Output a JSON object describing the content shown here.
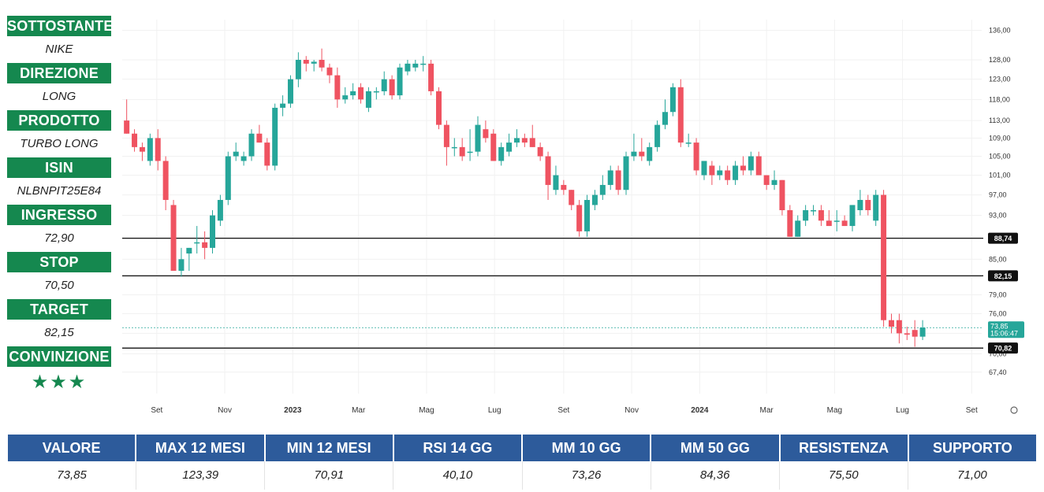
{
  "sidebar": [
    {
      "label": "SOTTOSTANTE",
      "value": "NIKE"
    },
    {
      "label": "DIREZIONE",
      "value": "LONG"
    },
    {
      "label": "PRODOTTO",
      "value": "TURBO LONG"
    },
    {
      "label": "ISIN",
      "value": "NLBNPIT25E84"
    },
    {
      "label": "INGRESSO",
      "value": "72,90"
    },
    {
      "label": "STOP",
      "value": "70,50"
    },
    {
      "label": "TARGET",
      "value": "82,15"
    },
    {
      "label": "CONVINZIONE",
      "value": "★★★"
    }
  ],
  "stats": [
    {
      "label": "VALORE",
      "value": "73,85"
    },
    {
      "label": "MAX 12 MESI",
      "value": "123,39"
    },
    {
      "label": "MIN 12 MESI",
      "value": "70,91"
    },
    {
      "label": "RSI 14 GG",
      "value": "40,10"
    },
    {
      "label": "MM 10 GG",
      "value": "73,26"
    },
    {
      "label": "MM 50 GG",
      "value": "84,36"
    },
    {
      "label": "RESISTENZA",
      "value": "75,50"
    },
    {
      "label": "SUPPORTO",
      "value": "71,00"
    }
  ],
  "colors": {
    "up": "#26a69a",
    "down": "#ef5361",
    "sidebar_header": "#15884f",
    "stats_header": "#2d5b9b",
    "current_price": "#26a69a"
  },
  "chart_data": {
    "type": "candlestick",
    "y_scale": "log",
    "ylim": [
      64.5,
      139
    ],
    "y_ticks": [
      67.4,
      70.0,
      73.0,
      76.0,
      79.0,
      82.0,
      85.0,
      89.0,
      93.0,
      97.0,
      101.0,
      105.0,
      109.0,
      113.0,
      118.0,
      123.0,
      128.0,
      136.0
    ],
    "y_tick_labels": [
      "67,40",
      "70,00",
      "73,00",
      "76,00",
      "79,00",
      "82,00",
      "85,00",
      "89,00",
      "93,00",
      "97,00",
      "101,00",
      "105,00",
      "109,00",
      "113,00",
      "118,00",
      "123,00",
      "128,00",
      "136,00"
    ],
    "x_ticks": [
      {
        "date": "2022-09-01",
        "label": "Set"
      },
      {
        "date": "2022-11-01",
        "label": "Nov"
      },
      {
        "date": "2023-01-01",
        "label": "2023"
      },
      {
        "date": "2023-03-01",
        "label": "Mar"
      },
      {
        "date": "2023-05-01",
        "label": "Mag"
      },
      {
        "date": "2023-07-01",
        "label": "Lug"
      },
      {
        "date": "2023-09-01",
        "label": "Set"
      },
      {
        "date": "2023-11-01",
        "label": "Nov"
      },
      {
        "date": "2024-01-01",
        "label": "2024"
      },
      {
        "date": "2024-03-01",
        "label": "Mar"
      },
      {
        "date": "2024-05-01",
        "label": "Mag"
      },
      {
        "date": "2024-07-01",
        "label": "Lug"
      },
      {
        "date": "2024-09-01",
        "label": "Set"
      }
    ],
    "x_range": [
      "2022-08-01",
      "2024-09-10"
    ],
    "horizontal_lines": [
      {
        "value": 88.74,
        "label": "88,74"
      },
      {
        "value": 82.15,
        "label": "82,15"
      },
      {
        "value": 70.82,
        "label": "70,82"
      }
    ],
    "current_price": {
      "value": 73.85,
      "label": "73,85",
      "countdown": "15:06:47"
    },
    "candles": [
      {
        "date": "2022-08-05",
        "o": 113,
        "h": 118,
        "l": 110,
        "c": 110
      },
      {
        "date": "2022-08-12",
        "o": 110,
        "h": 111,
        "l": 106,
        "c": 107
      },
      {
        "date": "2022-08-19",
        "o": 107,
        "h": 108,
        "l": 104,
        "c": 106
      },
      {
        "date": "2022-08-26",
        "o": 104,
        "h": 110,
        "l": 103,
        "c": 109
      },
      {
        "date": "2022-09-02",
        "o": 109,
        "h": 111,
        "l": 102,
        "c": 104
      },
      {
        "date": "2022-09-09",
        "o": 104,
        "h": 105,
        "l": 94,
        "c": 96
      },
      {
        "date": "2022-09-16",
        "o": 95,
        "h": 96,
        "l": 83,
        "c": 83
      },
      {
        "date": "2022-09-23",
        "o": 83,
        "h": 87,
        "l": 82,
        "c": 85
      },
      {
        "date": "2022-09-30",
        "o": 86,
        "h": 87,
        "l": 83,
        "c": 87
      },
      {
        "date": "2022-10-07",
        "o": 88,
        "h": 91,
        "l": 86,
        "c": 88
      },
      {
        "date": "2022-10-14",
        "o": 88,
        "h": 90,
        "l": 85,
        "c": 87
      },
      {
        "date": "2022-10-21",
        "o": 87,
        "h": 94,
        "l": 86,
        "c": 93
      },
      {
        "date": "2022-10-28",
        "o": 92,
        "h": 97,
        "l": 91,
        "c": 96
      },
      {
        "date": "2022-11-04",
        "o": 96,
        "h": 106,
        "l": 95,
        "c": 105
      },
      {
        "date": "2022-11-11",
        "o": 105,
        "h": 108,
        "l": 104,
        "c": 106
      },
      {
        "date": "2022-11-18",
        "o": 104,
        "h": 106,
        "l": 103,
        "c": 105
      },
      {
        "date": "2022-11-25",
        "o": 105,
        "h": 111,
        "l": 104,
        "c": 110
      },
      {
        "date": "2022-12-02",
        "o": 110,
        "h": 112,
        "l": 108,
        "c": 108
      },
      {
        "date": "2022-12-09",
        "o": 108,
        "h": 109,
        "l": 102,
        "c": 103
      },
      {
        "date": "2022-12-16",
        "o": 103,
        "h": 117,
        "l": 102,
        "c": 116
      },
      {
        "date": "2022-12-23",
        "o": 116,
        "h": 119,
        "l": 114,
        "c": 117
      },
      {
        "date": "2022-12-30",
        "o": 117,
        "h": 124,
        "l": 116,
        "c": 123
      },
      {
        "date": "2023-01-06",
        "o": 123,
        "h": 130,
        "l": 121,
        "c": 128
      },
      {
        "date": "2023-01-13",
        "o": 128,
        "h": 129,
        "l": 125,
        "c": 127
      },
      {
        "date": "2023-01-20",
        "o": 127,
        "h": 128,
        "l": 125,
        "c": 127.5
      },
      {
        "date": "2023-01-27",
        "o": 128,
        "h": 131,
        "l": 125,
        "c": 126
      },
      {
        "date": "2023-02-03",
        "o": 126,
        "h": 127,
        "l": 122,
        "c": 124
      },
      {
        "date": "2023-02-10",
        "o": 124,
        "h": 126,
        "l": 116,
        "c": 118
      },
      {
        "date": "2023-02-17",
        "o": 118,
        "h": 121,
        "l": 117,
        "c": 119
      },
      {
        "date": "2023-02-24",
        "o": 119,
        "h": 122,
        "l": 118,
        "c": 120
      },
      {
        "date": "2023-03-03",
        "o": 121,
        "h": 122,
        "l": 117,
        "c": 118
      },
      {
        "date": "2023-03-10",
        "o": 116,
        "h": 121,
        "l": 115,
        "c": 120
      },
      {
        "date": "2023-03-17",
        "o": 120,
        "h": 121,
        "l": 118,
        "c": 120
      },
      {
        "date": "2023-03-24",
        "o": 120,
        "h": 125,
        "l": 119,
        "c": 123
      },
      {
        "date": "2023-03-31",
        "o": 123,
        "h": 124,
        "l": 118,
        "c": 119
      },
      {
        "date": "2023-04-07",
        "o": 119,
        "h": 127,
        "l": 118,
        "c": 126
      },
      {
        "date": "2023-04-14",
        "o": 125,
        "h": 128,
        "l": 124,
        "c": 127
      },
      {
        "date": "2023-04-21",
        "o": 126,
        "h": 128,
        "l": 125,
        "c": 127
      },
      {
        "date": "2023-04-28",
        "o": 127,
        "h": 129,
        "l": 125,
        "c": 127
      },
      {
        "date": "2023-05-05",
        "o": 127,
        "h": 128,
        "l": 119,
        "c": 120
      },
      {
        "date": "2023-05-12",
        "o": 120,
        "h": 121,
        "l": 111,
        "c": 112
      },
      {
        "date": "2023-05-19",
        "o": 112,
        "h": 113,
        "l": 103,
        "c": 107
      },
      {
        "date": "2023-05-26",
        "o": 107,
        "h": 109,
        "l": 105,
        "c": 107
      },
      {
        "date": "2023-06-02",
        "o": 107,
        "h": 109,
        "l": 104,
        "c": 105
      },
      {
        "date": "2023-06-09",
        "o": 106,
        "h": 111,
        "l": 104,
        "c": 106
      },
      {
        "date": "2023-06-16",
        "o": 106,
        "h": 114,
        "l": 105,
        "c": 112
      },
      {
        "date": "2023-06-23",
        "o": 111,
        "h": 113,
        "l": 108,
        "c": 109
      },
      {
        "date": "2023-06-30",
        "o": 110,
        "h": 111,
        "l": 104,
        "c": 104
      },
      {
        "date": "2023-07-07",
        "o": 104,
        "h": 108,
        "l": 103,
        "c": 107
      },
      {
        "date": "2023-07-14",
        "o": 106,
        "h": 110,
        "l": 105,
        "c": 108
      },
      {
        "date": "2023-07-21",
        "o": 108,
        "h": 111,
        "l": 107,
        "c": 109
      },
      {
        "date": "2023-07-28",
        "o": 109,
        "h": 110,
        "l": 107,
        "c": 108
      },
      {
        "date": "2023-08-04",
        "o": 109,
        "h": 112,
        "l": 107,
        "c": 107
      },
      {
        "date": "2023-08-11",
        "o": 107,
        "h": 108,
        "l": 104,
        "c": 105
      },
      {
        "date": "2023-08-18",
        "o": 105,
        "h": 106,
        "l": 96,
        "c": 99
      },
      {
        "date": "2023-08-25",
        "o": 98,
        "h": 103,
        "l": 97,
        "c": 101
      },
      {
        "date": "2023-09-01",
        "o": 99,
        "h": 100,
        "l": 97,
        "c": 98
      },
      {
        "date": "2023-09-08",
        "o": 98,
        "h": 98,
        "l": 94,
        "c": 95
      },
      {
        "date": "2023-09-15",
        "o": 95,
        "h": 96,
        "l": 89,
        "c": 90
      },
      {
        "date": "2023-09-22",
        "o": 90,
        "h": 97,
        "l": 89,
        "c": 96
      },
      {
        "date": "2023-09-29",
        "o": 95,
        "h": 98,
        "l": 94,
        "c": 97
      },
      {
        "date": "2023-10-06",
        "o": 97,
        "h": 101,
        "l": 96,
        "c": 99
      },
      {
        "date": "2023-10-13",
        "o": 99,
        "h": 103,
        "l": 98,
        "c": 102
      },
      {
        "date": "2023-10-20",
        "o": 102,
        "h": 103,
        "l": 97,
        "c": 98
      },
      {
        "date": "2023-10-27",
        "o": 98,
        "h": 106,
        "l": 97,
        "c": 105
      },
      {
        "date": "2023-11-03",
        "o": 105,
        "h": 110,
        "l": 104,
        "c": 106
      },
      {
        "date": "2023-11-10",
        "o": 106,
        "h": 109,
        "l": 104,
        "c": 105
      },
      {
        "date": "2023-11-17",
        "o": 104,
        "h": 108,
        "l": 103,
        "c": 107
      },
      {
        "date": "2023-11-24",
        "o": 107,
        "h": 113,
        "l": 106,
        "c": 112
      },
      {
        "date": "2023-12-01",
        "o": 112,
        "h": 118,
        "l": 111,
        "c": 115
      },
      {
        "date": "2023-12-08",
        "o": 115,
        "h": 122,
        "l": 114,
        "c": 121
      },
      {
        "date": "2023-12-15",
        "o": 121,
        "h": 123,
        "l": 107,
        "c": 108
      },
      {
        "date": "2023-12-22",
        "o": 108,
        "h": 110,
        "l": 107,
        "c": 108
      },
      {
        "date": "2023-12-29",
        "o": 108,
        "h": 109,
        "l": 101,
        "c": 102
      },
      {
        "date": "2024-01-05",
        "o": 101,
        "h": 104,
        "l": 100,
        "c": 104
      },
      {
        "date": "2024-01-12",
        "o": 103,
        "h": 104,
        "l": 99,
        "c": 101
      },
      {
        "date": "2024-01-19",
        "o": 101,
        "h": 103,
        "l": 100,
        "c": 102
      },
      {
        "date": "2024-01-26",
        "o": 102,
        "h": 103,
        "l": 99,
        "c": 100
      },
      {
        "date": "2024-02-02",
        "o": 100,
        "h": 104,
        "l": 99,
        "c": 103
      },
      {
        "date": "2024-02-09",
        "o": 103,
        "h": 105,
        "l": 101,
        "c": 102
      },
      {
        "date": "2024-02-16",
        "o": 102,
        "h": 106,
        "l": 101,
        "c": 105
      },
      {
        "date": "2024-02-23",
        "o": 105,
        "h": 106,
        "l": 101,
        "c": 101
      },
      {
        "date": "2024-03-01",
        "o": 101,
        "h": 101,
        "l": 98,
        "c": 99
      },
      {
        "date": "2024-03-08",
        "o": 99,
        "h": 102,
        "l": 98,
        "c": 100
      },
      {
        "date": "2024-03-15",
        "o": 100,
        "h": 100,
        "l": 93,
        "c": 94
      },
      {
        "date": "2024-03-22",
        "o": 94,
        "h": 95,
        "l": 89,
        "c": 89
      },
      {
        "date": "2024-03-29",
        "o": 89,
        "h": 93,
        "l": 89,
        "c": 92
      },
      {
        "date": "2024-04-05",
        "o": 92,
        "h": 95,
        "l": 91,
        "c": 94
      },
      {
        "date": "2024-04-12",
        "o": 94,
        "h": 95,
        "l": 93,
        "c": 94
      },
      {
        "date": "2024-04-19",
        "o": 94,
        "h": 95,
        "l": 91,
        "c": 92
      },
      {
        "date": "2024-04-26",
        "o": 92,
        "h": 94,
        "l": 91,
        "c": 91
      },
      {
        "date": "2024-05-03",
        "o": 92,
        "h": 94,
        "l": 90,
        "c": 92
      },
      {
        "date": "2024-05-10",
        "o": 92,
        "h": 93,
        "l": 91,
        "c": 91
      },
      {
        "date": "2024-05-17",
        "o": 91,
        "h": 95,
        "l": 90,
        "c": 95
      },
      {
        "date": "2024-05-24",
        "o": 94,
        "h": 98,
        "l": 93,
        "c": 96
      },
      {
        "date": "2024-05-31",
        "o": 96,
        "h": 97,
        "l": 93,
        "c": 94
      },
      {
        "date": "2024-06-07",
        "o": 92,
        "h": 98,
        "l": 91,
        "c": 97
      },
      {
        "date": "2024-06-14",
        "o": 97,
        "h": 98,
        "l": 74,
        "c": 75
      },
      {
        "date": "2024-06-21",
        "o": 75,
        "h": 76,
        "l": 73,
        "c": 74
      },
      {
        "date": "2024-06-28",
        "o": 75,
        "h": 76,
        "l": 71.5,
        "c": 73
      },
      {
        "date": "2024-07-05",
        "o": 73,
        "h": 74,
        "l": 72,
        "c": 72.8
      },
      {
        "date": "2024-07-12",
        "o": 73.5,
        "h": 75,
        "l": 71,
        "c": 72.5
      },
      {
        "date": "2024-07-19",
        "o": 72.5,
        "h": 75,
        "l": 72,
        "c": 73.85
      }
    ]
  }
}
